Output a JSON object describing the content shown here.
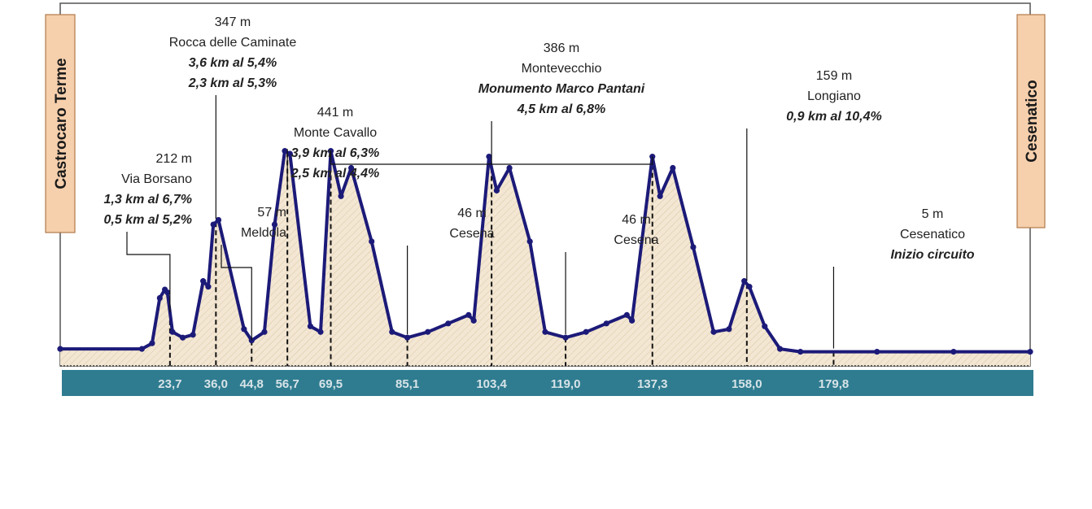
{
  "chart_data": {
    "type": "area",
    "start_label": "Castrocaro Terme",
    "end_label": "Cesenatico",
    "xlim": [
      0,
      190
    ],
    "ylim": [
      0,
      460
    ],
    "colors": {
      "line": "#1c1a78",
      "fill": "#f3e7d3",
      "band": "#2f7c90",
      "end_box": "#f6cfac"
    },
    "profile": [
      [
        0,
        30
      ],
      [
        16,
        30
      ],
      [
        18,
        40
      ],
      [
        19.5,
        120
      ],
      [
        20.5,
        135
      ],
      [
        21,
        130
      ],
      [
        22,
        60
      ],
      [
        24,
        50
      ],
      [
        26,
        55
      ],
      [
        28,
        150
      ],
      [
        29,
        140
      ],
      [
        30,
        250
      ],
      [
        31,
        258
      ],
      [
        36,
        65
      ],
      [
        37.5,
        45
      ],
      [
        40,
        60
      ],
      [
        42,
        250
      ],
      [
        44,
        380
      ],
      [
        45,
        375
      ],
      [
        49,
        70
      ],
      [
        51,
        60
      ],
      [
        53,
        380
      ],
      [
        55,
        300
      ],
      [
        57,
        350
      ],
      [
        61,
        220
      ],
      [
        65,
        60
      ],
      [
        68,
        50
      ],
      [
        72,
        60
      ],
      [
        76,
        75
      ],
      [
        80,
        90
      ],
      [
        81,
        80
      ],
      [
        84,
        370
      ],
      [
        85.5,
        310
      ],
      [
        88,
        350
      ],
      [
        92,
        220
      ],
      [
        95,
        60
      ],
      [
        99,
        50
      ],
      [
        103,
        60
      ],
      [
        107,
        75
      ],
      [
        111,
        90
      ],
      [
        112,
        80
      ],
      [
        116,
        370
      ],
      [
        117.5,
        300
      ],
      [
        120,
        350
      ],
      [
        124,
        210
      ],
      [
        128,
        60
      ],
      [
        131,
        65
      ],
      [
        134,
        150
      ],
      [
        135,
        140
      ],
      [
        138,
        70
      ],
      [
        141,
        30
      ],
      [
        145,
        25
      ],
      [
        160,
        25
      ],
      [
        175,
        25
      ],
      [
        190,
        25
      ]
    ],
    "ticks": [
      {
        "label": "23,7",
        "x": 21.5
      },
      {
        "label": "36,0",
        "x": 30.5
      },
      {
        "label": "44,8",
        "x": 37.5
      },
      {
        "label": "56,7",
        "x": 44.5
      },
      {
        "label": "69,5",
        "x": 53
      },
      {
        "label": "85,1",
        "x": 68
      },
      {
        "label": "103,4",
        "x": 84.5
      },
      {
        "label": "119,0",
        "x": 99
      },
      {
        "label": "137,3",
        "x": 116
      },
      {
        "label": "158,0",
        "x": 134.5
      },
      {
        "label": "179,8",
        "x": 151.5
      }
    ],
    "annotations": [
      {
        "x": 21.5,
        "lines": [
          "212 m",
          "Via Borsano"
        ],
        "climbs": [
          "1,3 km al 6,7%",
          "0,5 km al 5,2%"
        ],
        "align": "end"
      },
      {
        "x": 30.5,
        "lines": [
          "347 m",
          "Rocca delle Caminate"
        ],
        "climbs": [
          "3,6 km al 5,4%",
          "2,3 km al 5,3%"
        ],
        "align": "middle"
      },
      {
        "x": 37.5,
        "lines": [
          "57 m",
          "Meldola"
        ],
        "climbs": [],
        "align": "end"
      },
      {
        "x": 44.5,
        "lines": [
          "441 m",
          "Monte Cavallo"
        ],
        "climbs": [
          "3,9 km al 6,3%",
          "2,5 km al 4,4%"
        ],
        "align": "middle"
      },
      {
        "x": 68,
        "lines": [
          "46 m",
          "Cesena"
        ],
        "climbs": [],
        "align": "middle"
      },
      {
        "x": 84.5,
        "lines": [
          "386 m",
          "Montevecchio"
        ],
        "climbs": [
          "Monumento Marco Pantani",
          "4,5 km al 6,8%"
        ],
        "align": "middle"
      },
      {
        "x": 99,
        "lines": [
          "46 m",
          "Cesena"
        ],
        "climbs": [],
        "align": "middle"
      },
      {
        "x": 134.5,
        "lines": [
          "159 m",
          "Longiano"
        ],
        "climbs": [
          "0,9 km al 10,4%"
        ],
        "align": "middle"
      },
      {
        "x": 151.5,
        "lines": [
          "5 m",
          "Cesenatico"
        ],
        "climbs": [
          "Inizio circuito"
        ],
        "align": "middle"
      }
    ]
  }
}
